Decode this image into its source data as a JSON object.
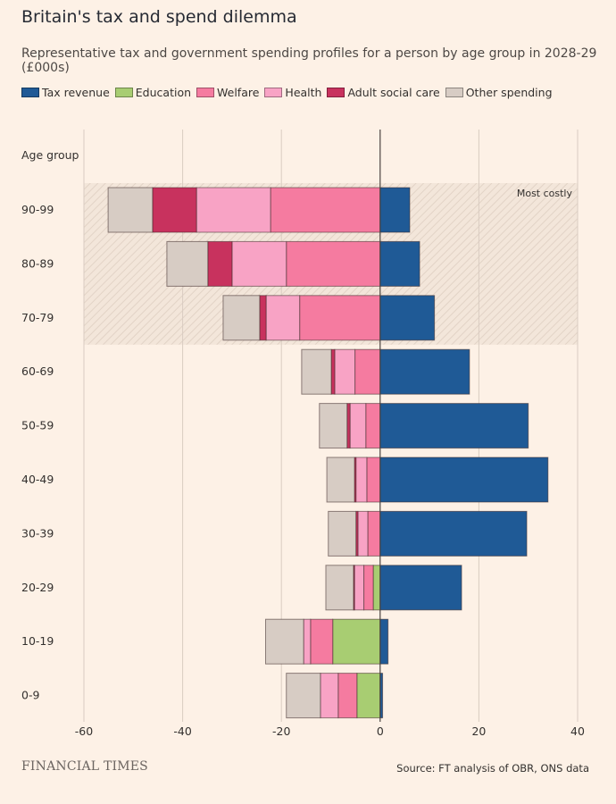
{
  "title": "Britain's tax and spend dilemma",
  "subtitle": "Representative tax and government spending profiles for a person by age group in 2028-29 (£000s)",
  "footer": {
    "brand": "FINANCIAL TIMES",
    "source": "Source: FT analysis of OBR, ONS data"
  },
  "colors": {
    "Tax revenue": "#1f5a96",
    "Education": "#a8cd72",
    "Welfare": "#f57ba0",
    "Health": "#f8a3c5",
    "Adult social care": "#c8325e",
    "Other spending": "#d7ccc4",
    "background": "#fdf1e6"
  },
  "chart_data": {
    "type": "bar",
    "orientation": "horizontal",
    "stacked": true,
    "title": "Britain's tax and spend dilemma",
    "ylabel": "Age group",
    "xlim": [
      -60,
      40
    ],
    "xticks": [
      -60,
      -40,
      -20,
      0,
      20,
      40
    ],
    "grid": true,
    "legend": "top",
    "categories": [
      "90-99",
      "80-89",
      "70-79",
      "60-69",
      "50-59",
      "40-49",
      "30-39",
      "20-29",
      "10-19",
      "0-9"
    ],
    "series": [
      {
        "name": "Tax revenue",
        "values": [
          6.0,
          8.0,
          11.0,
          18.1,
          30.0,
          34.0,
          29.7,
          16.5,
          1.6,
          0.5
        ]
      },
      {
        "name": "Education",
        "values": [
          0,
          0,
          0,
          0,
          0,
          0,
          0,
          -1.4,
          -9.6,
          -4.7
        ]
      },
      {
        "name": "Welfare",
        "values": [
          -22.2,
          -19.0,
          -16.3,
          -5.1,
          -2.9,
          -2.7,
          -2.5,
          -1.9,
          -4.5,
          -3.8
        ]
      },
      {
        "name": "Health",
        "values": [
          -15.0,
          -11.0,
          -6.8,
          -4.1,
          -3.2,
          -2.2,
          -2.0,
          -1.9,
          -1.4,
          -3.6
        ]
      },
      {
        "name": "Adult social care",
        "values": [
          -8.9,
          -4.9,
          -1.3,
          -0.7,
          -0.6,
          -0.3,
          -0.4,
          -0.2,
          0,
          0
        ]
      },
      {
        "name": "Other spending",
        "values": [
          -9.0,
          -8.3,
          -7.4,
          -6.0,
          -5.6,
          -5.6,
          -5.6,
          -5.6,
          -7.7,
          -6.9
        ]
      }
    ],
    "annotations": [
      {
        "text": "Most costly",
        "categories": [
          "90-99",
          "80-89",
          "70-79"
        ]
      }
    ]
  }
}
